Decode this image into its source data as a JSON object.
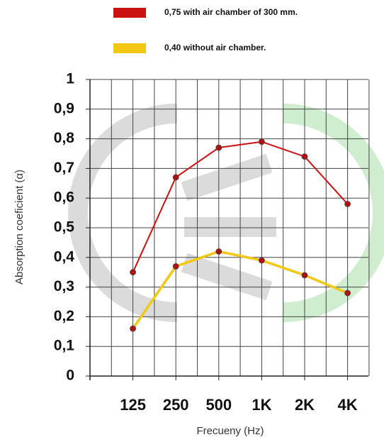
{
  "chart_data": {
    "type": "line",
    "y_label": "Absorption coeficient (α)",
    "x_label": "Frecueny (Hz)",
    "categories": [
      "125",
      "250",
      "500",
      "1K",
      "2K",
      "4K"
    ],
    "series": [
      {
        "name": "0,75 with air chamber of 300 mm.",
        "color": "#cc1111",
        "values": [
          0.35,
          0.67,
          0.77,
          0.79,
          0.74,
          0.58
        ]
      },
      {
        "name": "0,40 without air chamber.",
        "color": "#f2c814",
        "values": [
          0.16,
          0.37,
          0.42,
          0.39,
          0.34,
          0.28
        ]
      }
    ],
    "ylim": [
      0,
      1
    ],
    "yticks": [
      0,
      {
        "value": 0.1,
        "label": "0,1"
      },
      {
        "value": 0.2,
        "label": "0,2"
      },
      {
        "value": 0.3,
        "label": "0,3"
      },
      {
        "value": 0.4,
        "label": "0,4"
      },
      {
        "value": 0.5,
        "label": "0,5"
      },
      {
        "value": 0.6,
        "label": "0,6"
      },
      {
        "value": 0.7,
        "label": "0,7"
      },
      {
        "value": 0.8,
        "label": "0,8"
      },
      {
        "value": 0.9,
        "label": "0,9"
      },
      1
    ],
    "grid": true
  }
}
